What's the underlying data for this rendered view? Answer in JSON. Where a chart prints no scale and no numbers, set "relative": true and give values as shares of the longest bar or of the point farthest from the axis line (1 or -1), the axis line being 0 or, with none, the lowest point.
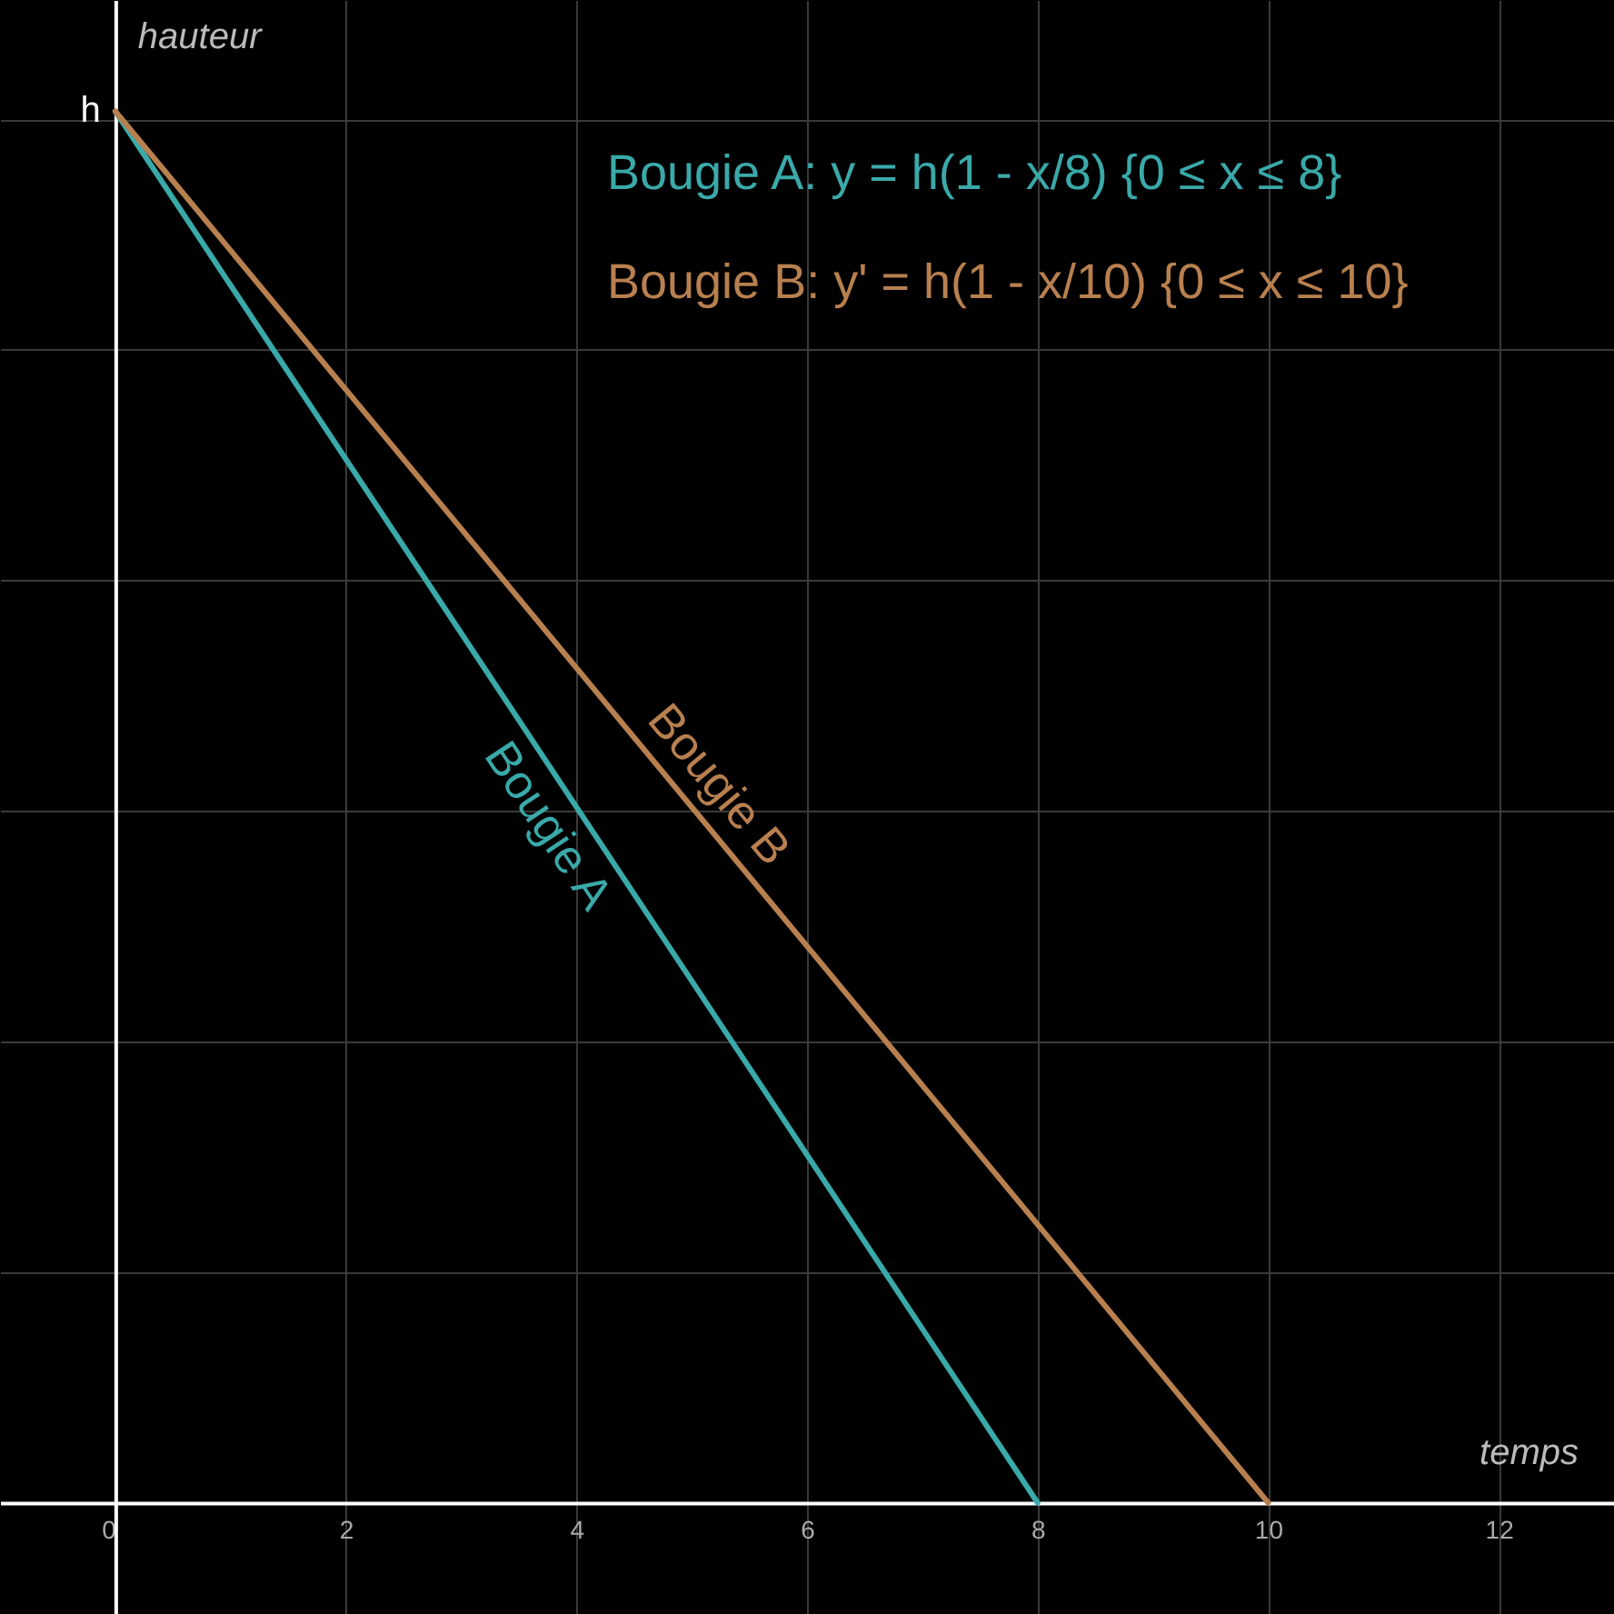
{
  "chart_data": {
    "type": "line",
    "xlabel": "temps",
    "ylabel": "hauteur",
    "relative": true,
    "xlim": [
      -1,
      13
    ],
    "xticks": [
      0,
      2,
      4,
      6,
      8,
      10,
      12
    ],
    "grid": true,
    "series": [
      {
        "name": "Bougie A",
        "color": "#3aa9a9",
        "x": [
          0,
          8
        ],
        "values": [
          1,
          0
        ]
      },
      {
        "name": "Bougie B",
        "color": "#b8804f",
        "x": [
          0,
          10
        ],
        "values": [
          1,
          0
        ]
      }
    ],
    "annotations": [
      {
        "text": "h",
        "x": 0,
        "y": 1
      },
      "Bougie A: y = h(1 - x/8) {0 ≤ x ≤ 8}",
      "Bougie B: y' = h(1 - x/10) {0 ≤ x ≤ 10}"
    ]
  }
}
